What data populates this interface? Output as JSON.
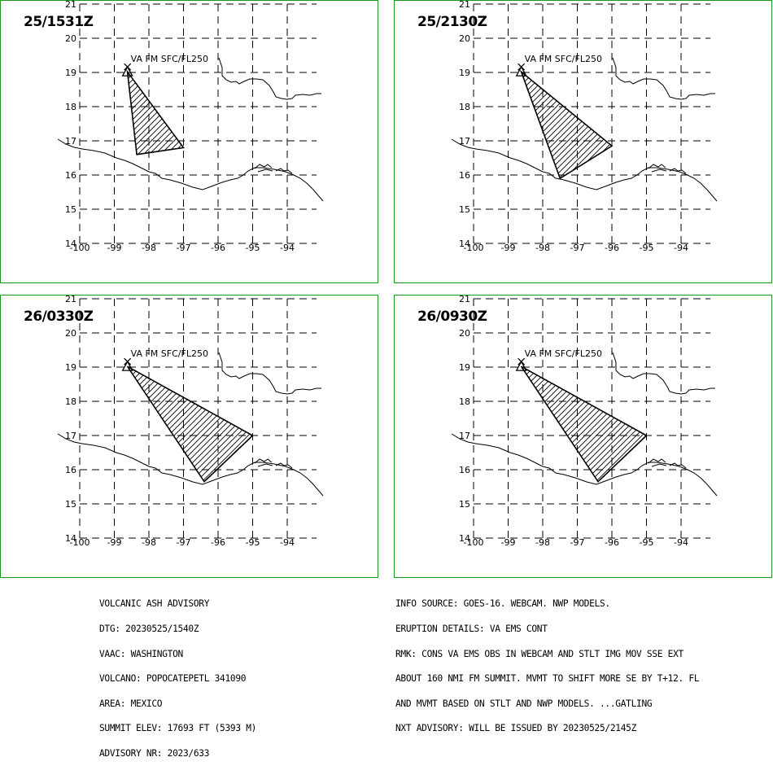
{
  "panels": [
    {
      "time": "25/1531Z",
      "label": "VA FM SFC/FL250",
      "polygon": [
        [
          -98.62,
          19.02
        ],
        [
          -97.0,
          16.8
        ],
        [
          -98.35,
          16.6
        ]
      ]
    },
    {
      "time": "25/2130Z",
      "label": "VA FM SFC/FL250",
      "polygon": [
        [
          -98.62,
          19.02
        ],
        [
          -96.0,
          16.85
        ],
        [
          -97.5,
          15.9
        ]
      ]
    },
    {
      "time": "26/0330Z",
      "label": "VA FM SFC/FL250",
      "polygon": [
        [
          -98.62,
          19.02
        ],
        [
          -95.0,
          17.0
        ],
        [
          -96.4,
          15.65
        ]
      ]
    },
    {
      "time": "26/0930Z",
      "label": "VA FM SFC/FL250",
      "polygon": [
        [
          -98.62,
          19.02
        ],
        [
          -95.0,
          17.0
        ],
        [
          -96.4,
          15.65
        ]
      ]
    }
  ],
  "map": {
    "lon_ticks": [
      "-100",
      "-99",
      "-98",
      "-97",
      "-96",
      "-95",
      "-94"
    ],
    "lat_ticks": [
      "21",
      "20",
      "19",
      "18",
      "17",
      "16",
      "15",
      "14"
    ],
    "volcano": {
      "lon": -98.62,
      "lat": 19.02
    }
  },
  "advisory_left": [
    "VOLCANIC ASH ADVISORY",
    "DTG: 20230525/1540Z",
    "VAAC: WASHINGTON",
    "VOLCANO: POPOCATEPETL 341090",
    "AREA: MEXICO",
    "SUMMIT ELEV: 17693 FT (5393 M)",
    "ADVISORY NR: 2023/633"
  ],
  "advisory_right": [
    "INFO SOURCE: GOES-16. WEBCAM. NWP MODELS.",
    "ERUPTION DETAILS: VA EMS CONT",
    "RMK: CONS VA EMS OBS IN WEBCAM AND STLT IMG MOV SSE EXT",
    "ABOUT 160 NMI FM SUMMIT. MVMT TO SHIFT MORE SE BY T+12. FL",
    "AND MVMT BASED ON STLT AND NWP MODELS. ...GATLING",
    "NXT ADVISORY: WILL BE ISSUED BY 20230525/2145Z"
  ]
}
